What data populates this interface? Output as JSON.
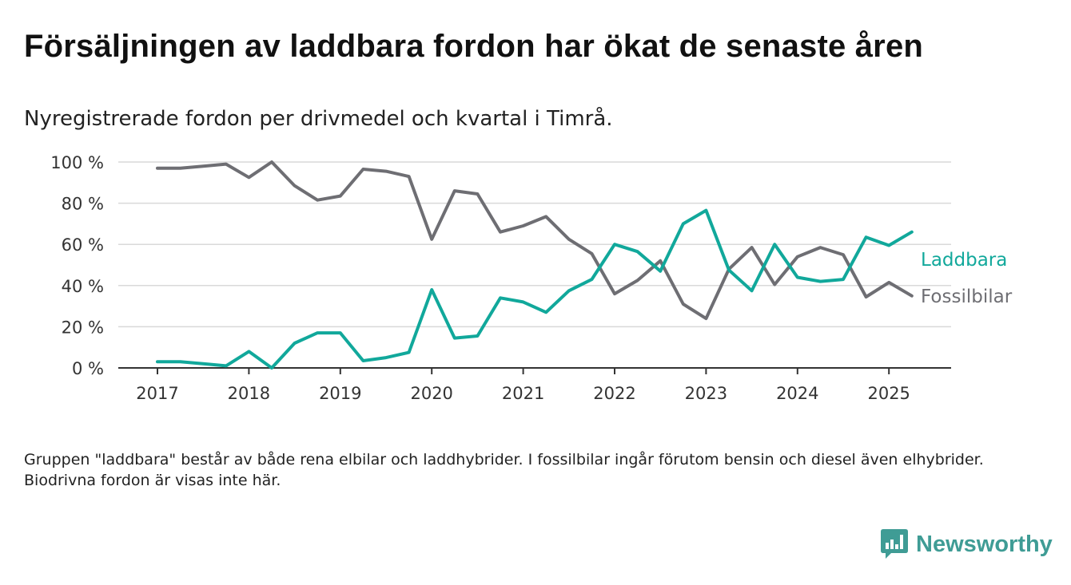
{
  "title": "Försäljningen av laddbara fordon har ökat de senaste åren",
  "subtitle": "Nyregistrerade fordon per drivmedel och kvartal i Timrå.",
  "footnote": "Gruppen \"laddbara\" består av både rena elbilar och laddhybrider. I fossilbilar ingår förutom bensin och diesel även elhybrider. Biodrivna fordon är visas inte här.",
  "brand": {
    "name": "Newsworthy",
    "icon": "bar-chart-speech-bubble-icon",
    "color": "#3f9c95"
  },
  "chart_data": {
    "type": "line",
    "x": [
      "2017-Q1",
      "2017-Q2",
      "2017-Q3",
      "2017-Q4",
      "2018-Q1",
      "2018-Q2",
      "2018-Q3",
      "2018-Q4",
      "2019-Q1",
      "2019-Q2",
      "2019-Q3",
      "2019-Q4",
      "2020-Q1",
      "2020-Q2",
      "2020-Q3",
      "2020-Q4",
      "2021-Q1",
      "2021-Q2",
      "2021-Q3",
      "2021-Q4",
      "2022-Q1",
      "2022-Q2",
      "2022-Q3",
      "2022-Q4",
      "2023-Q1",
      "2023-Q2",
      "2023-Q3",
      "2023-Q4",
      "2024-Q1",
      "2024-Q2",
      "2024-Q3",
      "2024-Q4",
      "2025-Q1",
      "2025-Q2"
    ],
    "xticks": [
      "2017",
      "2018",
      "2019",
      "2020",
      "2021",
      "2022",
      "2023",
      "2024",
      "2025"
    ],
    "yticks": [
      "0 %",
      "20 %",
      "40 %",
      "60 %",
      "80 %",
      "100 %"
    ],
    "ylim": [
      0,
      100
    ],
    "grid": true,
    "legend": "inline-right",
    "series": [
      {
        "name": "Laddbara",
        "color": "#11a89b",
        "values": [
          3,
          3,
          2,
          1,
          8,
          0,
          12,
          17,
          17,
          3.5,
          5,
          7.5,
          38,
          14.5,
          15.5,
          34,
          32,
          27,
          37.5,
          43,
          60,
          56.5,
          47,
          70,
          76.5,
          47.5,
          37.5,
          60,
          44,
          42,
          43,
          63.5,
          59.5,
          66
        ]
      },
      {
        "name": "Fossilbilar",
        "color": "#6e6e73",
        "values": [
          97,
          97,
          98,
          99,
          92.5,
          100,
          88.5,
          81.5,
          83.5,
          96.5,
          95.5,
          93,
          62.5,
          86,
          84.5,
          66,
          69,
          73.5,
          62.5,
          55.5,
          36,
          42.5,
          52,
          31,
          24,
          48,
          58.5,
          40.5,
          54,
          58.5,
          55,
          34.5,
          41.5,
          35
        ]
      }
    ]
  }
}
